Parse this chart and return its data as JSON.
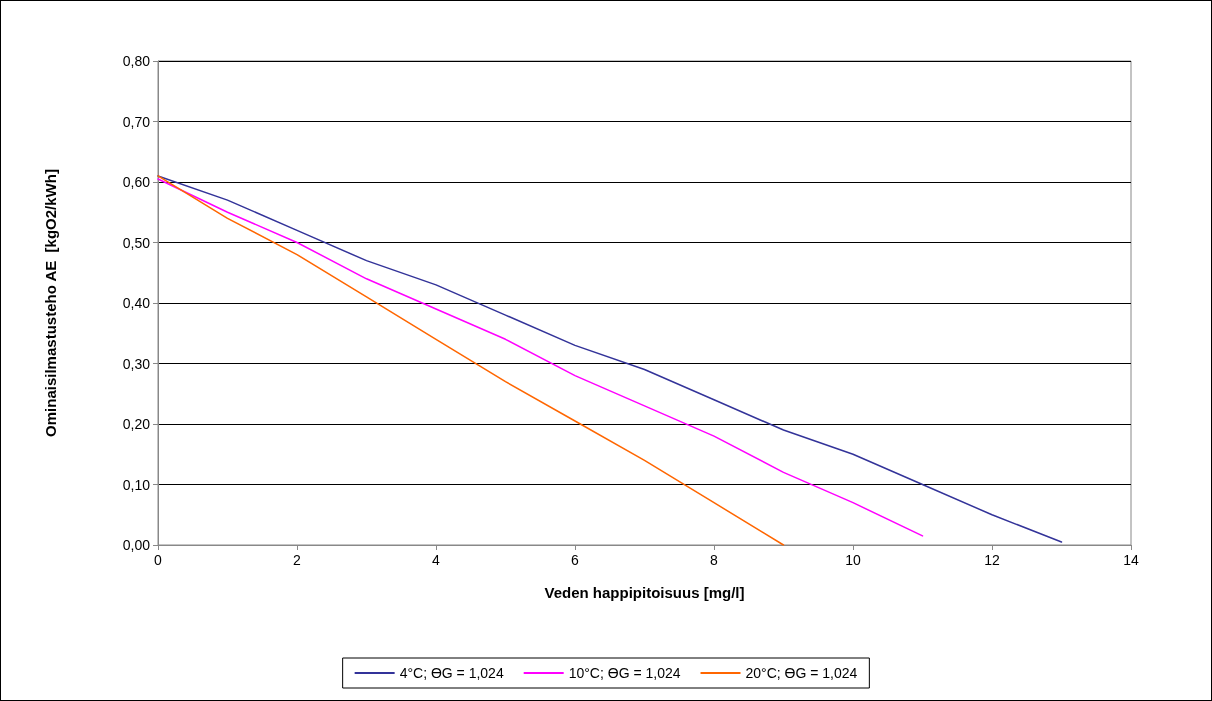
{
  "chart_data": {
    "type": "line",
    "xlabel": "Veden happipitoisuus [mg/l]",
    "ylabel": "Ominaisilmastusteho AE  [kgO2/kWh]",
    "x": [
      0,
      1,
      2,
      3,
      4,
      5,
      6,
      7,
      8,
      9,
      10,
      11,
      12,
      13
    ],
    "series": [
      {
        "name": "4°C; ϴG = 1,024",
        "color": "#333399",
        "values": [
          0.61,
          0.57,
          0.52,
          0.47,
          0.43,
          0.38,
          0.33,
          0.29,
          0.24,
          0.19,
          0.15,
          0.1,
          0.05,
          0.005
        ]
      },
      {
        "name": "10°C; ϴG = 1,024",
        "color": "#ff00ff",
        "values": [
          0.605,
          0.55,
          0.5,
          0.44,
          0.39,
          0.34,
          0.28,
          0.23,
          0.18,
          0.12,
          0.07,
          0.015,
          null,
          null
        ]
      },
      {
        "name": "20°C; ϴG = 1,024",
        "color": "#ff6600",
        "values": [
          0.61,
          0.54,
          0.48,
          0.41,
          0.34,
          0.27,
          0.205,
          0.14,
          0.07,
          0.0,
          null,
          null,
          null,
          null
        ]
      }
    ],
    "xlim": [
      0,
      14
    ],
    "xticks": [
      0,
      2,
      4,
      6,
      8,
      10,
      12,
      14
    ],
    "ylim": [
      0,
      0.8
    ],
    "yticks": [
      {
        "value": 0,
        "label": "0,00"
      },
      {
        "value": 0.1,
        "label": "0,10"
      },
      {
        "value": 0.2,
        "label": "0,20"
      },
      {
        "value": 0.3,
        "label": "0,30"
      },
      {
        "value": 0.4,
        "label": "0,40"
      },
      {
        "value": 0.5,
        "label": "0,50"
      },
      {
        "value": 0.6,
        "label": "0,60"
      },
      {
        "value": 0.7,
        "label": "0,70"
      },
      {
        "value": 0.8,
        "label": "0,80"
      }
    ],
    "grid": "y",
    "legend": "bottom",
    "marker": "none",
    "line_style": "solid"
  }
}
